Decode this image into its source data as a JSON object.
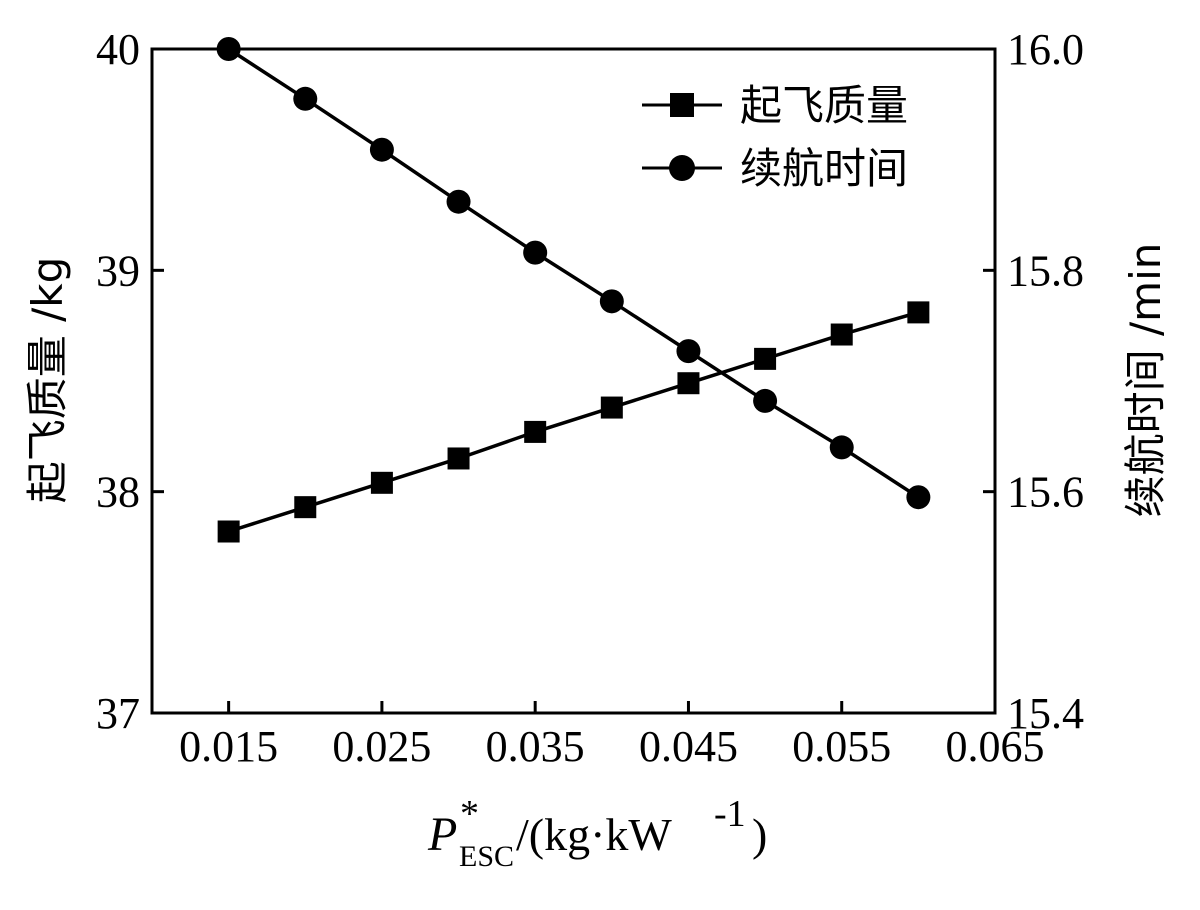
{
  "chart_data": {
    "type": "line",
    "x": [
      0.015,
      0.02,
      0.025,
      0.03,
      0.035,
      0.04,
      0.045,
      0.05,
      0.055,
      0.06
    ],
    "xlim": [
      0.01,
      0.065
    ],
    "xticks": [
      "0.015",
      "0.025",
      "0.035",
      "0.045",
      "0.055",
      "0.065"
    ],
    "xtick_values": [
      0.015,
      0.025,
      0.035,
      0.045,
      0.055,
      0.065
    ],
    "xlabel": {
      "symbol": "P",
      "superscript": "*",
      "subscript": "ESC",
      "unit_open": "/(kg·kW",
      "unit_exp": "-1",
      "unit_close": ")"
    },
    "y_left": {
      "label": "起飞质量 /kg",
      "lim": [
        37,
        40
      ],
      "ticks": [
        "37",
        "38",
        "39",
        "40"
      ],
      "tick_values": [
        37,
        38,
        39,
        40
      ]
    },
    "y_right": {
      "label": "续航时间 /min",
      "lim": [
        15.4,
        16.0
      ],
      "ticks": [
        "15.4",
        "15.6",
        "15.8",
        "16.0"
      ],
      "tick_values": [
        15.4,
        15.6,
        15.8,
        16.0
      ]
    },
    "series": [
      {
        "name": "起飞质量",
        "axis": "left",
        "marker": "square",
        "values": [
          37.82,
          37.93,
          38.04,
          38.15,
          38.27,
          38.38,
          38.49,
          38.6,
          38.71,
          38.81
        ]
      },
      {
        "name": "续航时间",
        "axis": "right",
        "marker": "circle",
        "values": [
          16.0,
          15.955,
          15.909,
          15.862,
          15.816,
          15.772,
          15.727,
          15.682,
          15.64,
          15.595
        ]
      }
    ],
    "legend_position": "top-right",
    "grid": false,
    "colors": {
      "line": "#000000",
      "marker": "#000000"
    }
  }
}
